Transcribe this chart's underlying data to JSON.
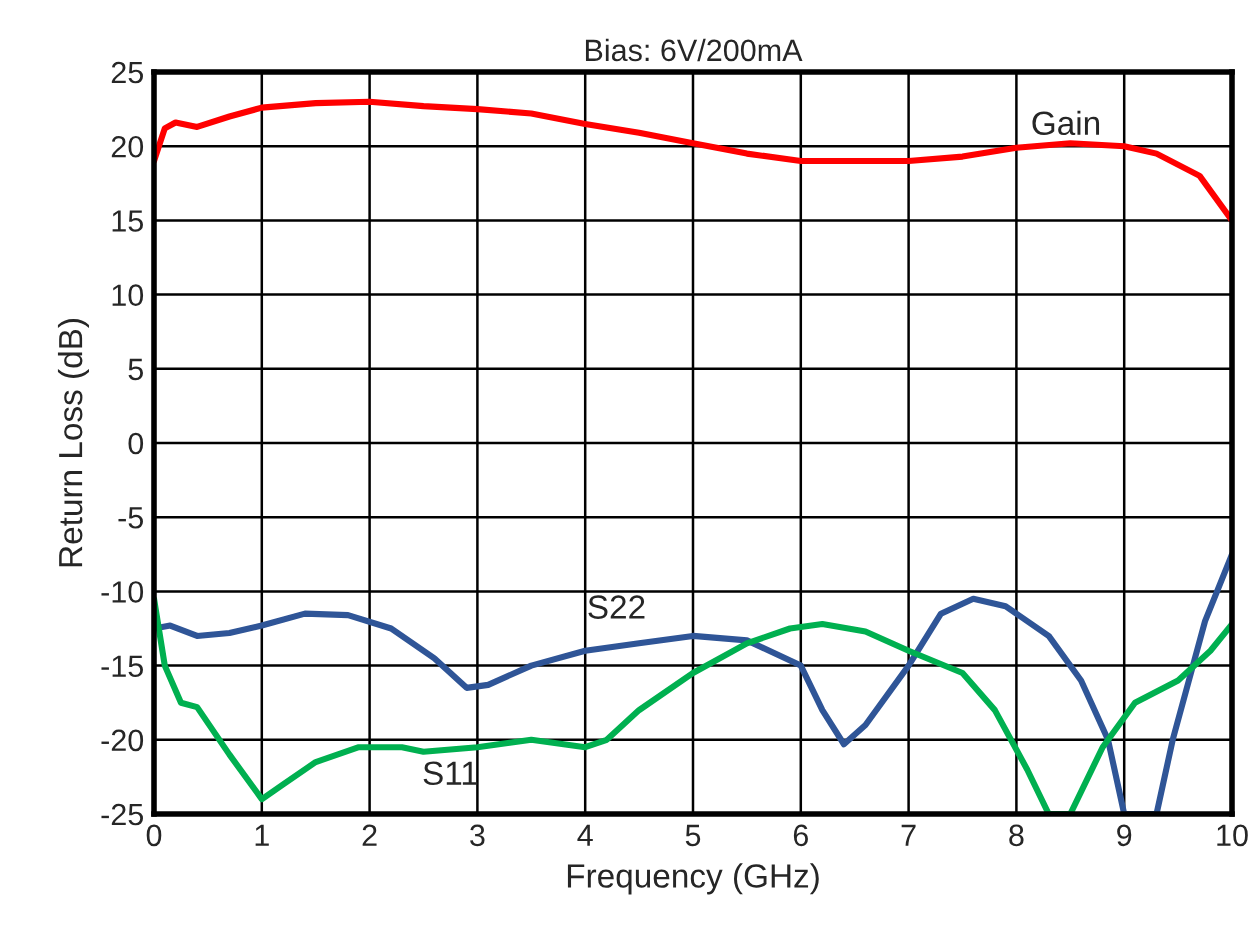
{
  "chart_data": {
    "type": "line",
    "title": "Bias: 6V/200mA",
    "xlabel": "Frequency (GHz)",
    "ylabel": "Return Loss (dB)",
    "xlim": [
      0,
      10
    ],
    "ylim": [
      -25,
      25
    ],
    "xticks": [
      0,
      1,
      2,
      3,
      4,
      5,
      6,
      7,
      8,
      9,
      10
    ],
    "yticks": [
      -25,
      -20,
      -15,
      -10,
      -5,
      0,
      5,
      10,
      15,
      20,
      25
    ],
    "grid": true,
    "marker": "none",
    "line_style": "solid",
    "series": [
      {
        "color": "#ff0000",
        "x": [
          0,
          0.1,
          0.2,
          0.4,
          0.7,
          1,
          1.5,
          2,
          2.5,
          3,
          3.5,
          4,
          4.5,
          5,
          5.5,
          6,
          6.5,
          7,
          7.5,
          8,
          8.5,
          9,
          9.3,
          9.7,
          10
        ],
        "values": [
          19,
          21.2,
          21.6,
          21.3,
          22,
          22.6,
          22.9,
          23,
          22.7,
          22.5,
          22.2,
          21.5,
          20.9,
          20.2,
          19.5,
          19,
          19,
          19,
          19.3,
          19.9,
          20.2,
          20,
          19.5,
          18,
          15
        ]
      },
      {
        "color": "#2f5597",
        "x": [
          0,
          0.15,
          0.4,
          0.7,
          1,
          1.4,
          1.8,
          2.2,
          2.6,
          2.9,
          3.1,
          3.5,
          4,
          4.5,
          5,
          5.5,
          6,
          6.2,
          6.4,
          6.6,
          7,
          7.3,
          7.6,
          7.9,
          8.3,
          8.6,
          8.85,
          9.0,
          9.3,
          9.45,
          9.6,
          9.75,
          10
        ],
        "values": [
          -12.5,
          -12.3,
          -13,
          -12.8,
          -12.3,
          -11.5,
          -11.6,
          -12.5,
          -14.5,
          -16.5,
          -16.3,
          -15,
          -14,
          -13.5,
          -13,
          -13.3,
          -15,
          -18,
          -20.3,
          -19,
          -15,
          -11.5,
          -10.5,
          -11,
          -13,
          -16,
          -20,
          -25,
          -25,
          -20,
          -16,
          -12,
          -7.5
        ]
      },
      {
        "color": "#00b050",
        "x": [
          0,
          0.1,
          0.25,
          0.4,
          0.7,
          1,
          1.2,
          1.5,
          1.9,
          2.3,
          2.5,
          3,
          3.3,
          3.5,
          4,
          4.2,
          4.5,
          5,
          5.5,
          5.9,
          6.2,
          6.6,
          7,
          7.5,
          7.8,
          8.1,
          8.3,
          8.5,
          8.8,
          9.1,
          9.5,
          9.8,
          10
        ],
        "values": [
          -10.5,
          -15,
          -17.5,
          -17.8,
          -21,
          -24,
          -23,
          -21.5,
          -20.5,
          -20.5,
          -20.8,
          -20.5,
          -20.2,
          -20,
          -20.5,
          -20,
          -18,
          -15.5,
          -13.5,
          -12.5,
          -12.2,
          -12.7,
          -14,
          -15.5,
          -18,
          -22,
          -25,
          -25,
          -20.5,
          -17.5,
          -16,
          -14,
          -12.2
        ]
      }
    ],
    "annotations": [
      "Gain",
      "S22",
      "S11"
    ]
  }
}
